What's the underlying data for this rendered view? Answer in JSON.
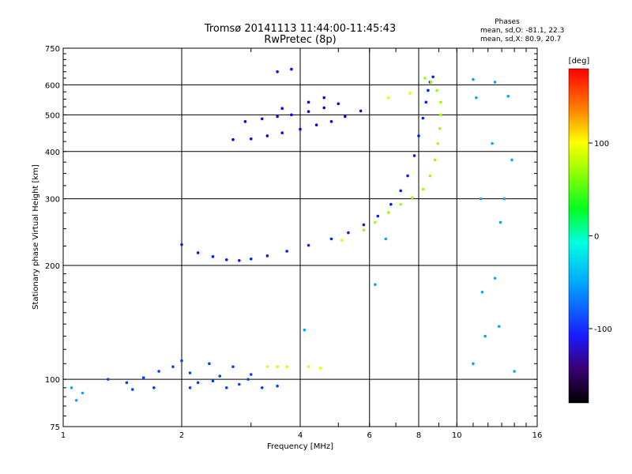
{
  "chart_data": {
    "type": "scatter",
    "title": "Tromsø 20141113 11:44:00-11:45:43",
    "subtitle": "RwPretec (8p)",
    "xlabel": "Frequency [MHz]",
    "ylabel": "Stationary phase Virtual Height [km]",
    "x_scale": "log",
    "y_scale": "log",
    "xlim": [
      1,
      16
    ],
    "ylim": [
      75,
      750
    ],
    "x_ticks": [
      "1",
      "2",
      "4",
      "6",
      "8",
      "10",
      "16"
    ],
    "x_tick_values": [
      1,
      2,
      4,
      6,
      8,
      10,
      16
    ],
    "y_ticks": [
      "75",
      "100",
      "200",
      "300",
      "400",
      "500",
      "600",
      "750"
    ],
    "y_tick_values": [
      75,
      100,
      200,
      300,
      400,
      500,
      600,
      750
    ],
    "grid": true,
    "info_block": {
      "heading": "Phases",
      "line1": "mean, sd,O: -81.1, 22.3",
      "line2": "mean, sd,X:  80.9, 20.7"
    },
    "colorbar": {
      "label": "[deg]",
      "range": [
        -180,
        180
      ],
      "ticks": [
        "100",
        "0",
        "-100"
      ],
      "tick_values": [
        100,
        0,
        -100
      ]
    },
    "series": [
      {
        "trace": "O-mode F trace (blue)",
        "phase": -100,
        "points": [
          [
            2.0,
            227
          ],
          [
            2.2,
            216
          ],
          [
            2.4,
            211
          ],
          [
            2.6,
            207
          ],
          [
            2.8,
            206
          ],
          [
            3.0,
            208
          ],
          [
            3.3,
            212
          ],
          [
            3.7,
            218
          ],
          [
            4.2,
            226
          ],
          [
            4.8,
            235
          ],
          [
            5.3,
            244
          ],
          [
            5.8,
            256
          ],
          [
            6.3,
            270
          ],
          [
            6.8,
            290
          ],
          [
            7.2,
            315
          ],
          [
            7.5,
            345
          ],
          [
            7.8,
            390
          ],
          [
            8.0,
            440
          ],
          [
            8.2,
            490
          ],
          [
            8.35,
            540
          ],
          [
            8.45,
            580
          ],
          [
            8.55,
            610
          ],
          [
            8.7,
            630
          ]
        ]
      },
      {
        "trace": "X-mode F trace (yellow-green)",
        "phase": 80,
        "points": [
          [
            5.8,
            248
          ],
          [
            6.2,
            260
          ],
          [
            6.7,
            276
          ],
          [
            7.2,
            290
          ],
          [
            7.7,
            302
          ],
          [
            8.2,
            318
          ],
          [
            8.55,
            345
          ],
          [
            8.8,
            380
          ],
          [
            8.95,
            420
          ],
          [
            9.05,
            460
          ],
          [
            9.1,
            500
          ],
          [
            9.1,
            540
          ],
          [
            8.9,
            580
          ],
          [
            8.6,
            610
          ],
          [
            8.3,
            625
          ]
        ]
      },
      {
        "trace": "Spread F upper band",
        "phase": -110,
        "points": [
          [
            2.7,
            430
          ],
          [
            3.0,
            432
          ],
          [
            3.3,
            440
          ],
          [
            3.6,
            448
          ],
          [
            4.0,
            458
          ],
          [
            4.4,
            470
          ],
          [
            4.8,
            480
          ],
          [
            5.2,
            495
          ],
          [
            5.7,
            512
          ],
          [
            2.9,
            480
          ],
          [
            3.2,
            488
          ],
          [
            3.5,
            495
          ],
          [
            3.8,
            500
          ],
          [
            4.2,
            510
          ],
          [
            4.6,
            522
          ],
          [
            5.0,
            535
          ],
          [
            3.6,
            520
          ],
          [
            4.2,
            540
          ],
          [
            4.6,
            555
          ],
          [
            3.5,
            650
          ],
          [
            3.8,
            660
          ]
        ]
      },
      {
        "trace": "E region echoes",
        "phase": -90,
        "points": [
          [
            1.3,
            100
          ],
          [
            1.45,
            98
          ],
          [
            1.6,
            101
          ],
          [
            1.75,
            105
          ],
          [
            1.9,
            108
          ],
          [
            2.0,
            112
          ],
          [
            2.1,
            104
          ],
          [
            2.2,
            98
          ],
          [
            2.35,
            110
          ],
          [
            2.5,
            102
          ],
          [
            2.6,
            95
          ],
          [
            2.8,
            97
          ],
          [
            2.95,
            100
          ],
          [
            3.2,
            95
          ],
          [
            3.5,
            96
          ],
          [
            1.5,
            94
          ],
          [
            1.7,
            95
          ],
          [
            2.1,
            95
          ],
          [
            2.4,
            99
          ],
          [
            2.7,
            108
          ],
          [
            3.0,
            103
          ]
        ]
      },
      {
        "trace": "E region echoes (positive phase)",
        "phase": 100,
        "points": [
          [
            3.3,
            108
          ],
          [
            3.5,
            108
          ],
          [
            3.7,
            108
          ],
          [
            4.2,
            108
          ],
          [
            4.5,
            107
          ],
          [
            5.1,
            233
          ],
          [
            6.7,
            555
          ],
          [
            7.6,
            570
          ]
        ]
      },
      {
        "trace": "Scattered noise",
        "phase": -60,
        "points": [
          [
            1.05,
            95
          ],
          [
            1.08,
            88
          ],
          [
            1.12,
            92
          ],
          [
            11.0,
            620
          ],
          [
            11.2,
            555
          ],
          [
            12.5,
            610
          ],
          [
            13.5,
            560
          ],
          [
            11.5,
            300
          ],
          [
            12.3,
            420
          ],
          [
            13.8,
            380
          ],
          [
            11.6,
            170
          ],
          [
            12.5,
            185
          ],
          [
            12.8,
            138
          ],
          [
            11.0,
            110
          ],
          [
            14.0,
            105
          ],
          [
            13.2,
            300
          ],
          [
            12.9,
            260
          ],
          [
            11.8,
            130
          ],
          [
            6.6,
            235
          ],
          [
            6.2,
            178
          ],
          [
            4.1,
            135
          ]
        ]
      }
    ]
  }
}
